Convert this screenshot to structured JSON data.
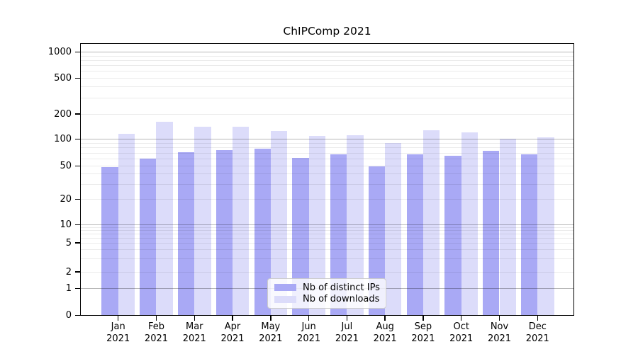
{
  "chart_data": {
    "type": "bar",
    "title": "ChIPComp 2021",
    "categories": [
      "Jan 2021",
      "Feb 2021",
      "Mar 2021",
      "Apr 2021",
      "May 2021",
      "Jun 2021",
      "Jul 2021",
      "Aug 2021",
      "Sep 2021",
      "Oct 2021",
      "Nov 2021",
      "Dec 2021"
    ],
    "series": [
      {
        "name": "Nb of distinct IPs",
        "color": "#a9a9f5",
        "values": [
          49,
          61,
          71,
          76,
          78,
          62,
          67,
          50,
          68,
          65,
          74,
          68
        ]
      },
      {
        "name": "Nb of downloads",
        "color": "#dcdcfa",
        "values": [
          115,
          162,
          140,
          142,
          124,
          110,
          112,
          90,
          127,
          121,
          101,
          105
        ]
      }
    ],
    "xlabel": "",
    "ylabel": "",
    "yscale": "log-like with linear segment near zero",
    "ylim": [
      0,
      1250
    ],
    "yticks": [
      0,
      1,
      2,
      5,
      10,
      20,
      50,
      100,
      200,
      500,
      1000
    ],
    "ygrid_minor": [
      2,
      3,
      4,
      5,
      6,
      7,
      8,
      9,
      20,
      30,
      40,
      50,
      60,
      70,
      80,
      90,
      200,
      300,
      400,
      500,
      600,
      700,
      800,
      900
    ],
    "ygrid_major": [
      1,
      10,
      100,
      1000
    ],
    "grid": "horizontal",
    "legend_position": "inside bottom-center"
  }
}
